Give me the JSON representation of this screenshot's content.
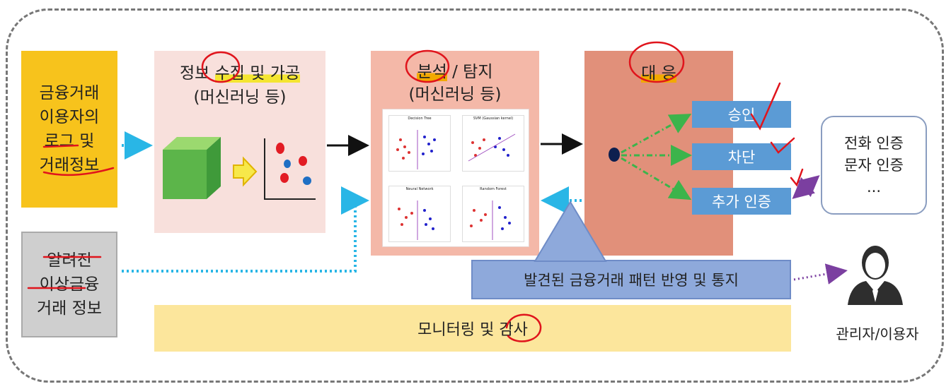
{
  "source1": {
    "lines": [
      "금융거래",
      "이용자의",
      "로그 및",
      "거래정보"
    ]
  },
  "source2": {
    "lines": [
      "알려진",
      "이상금융",
      "거래 정보"
    ]
  },
  "collect": {
    "title_pre": "정보 ",
    "title_hl": "수집",
    "title_post": " 및 가공",
    "subtitle": "(머신러닝 등)"
  },
  "analyze": {
    "title_hl": "분석",
    "title_post": " / 탐지",
    "subtitle": "(머신러닝 등)",
    "plots": [
      "Decision Tree",
      "SVM (Gaussian kernel)",
      "Neural Network",
      "Random Forest"
    ]
  },
  "respond": {
    "title": "대 응",
    "actions": [
      "승인",
      "차단",
      "추가 인증"
    ]
  },
  "auth": {
    "lines": [
      "전화 인증",
      "문자 인증",
      "..."
    ]
  },
  "notify": {
    "label": "발견된 금융거래 패턴 반영 및 통지"
  },
  "monitor": {
    "label": "모니터링 및 감사"
  },
  "admin": {
    "label": "관리자/이용자"
  },
  "colors": {
    "source1": "#f7c31c",
    "source2": "#cfcfcf",
    "collect": "#f8e0dc",
    "analyze": "#f4b8a8",
    "respond": "#e1907a",
    "action": "#5b9bd5",
    "notify": "#8ea9db",
    "monitor": "#fce69c",
    "dotted_arrow": "#29b6e6",
    "response_arrow": "#3cb44b",
    "auth_arrow": "#7b3fa0",
    "annotation": "#e0141c"
  }
}
